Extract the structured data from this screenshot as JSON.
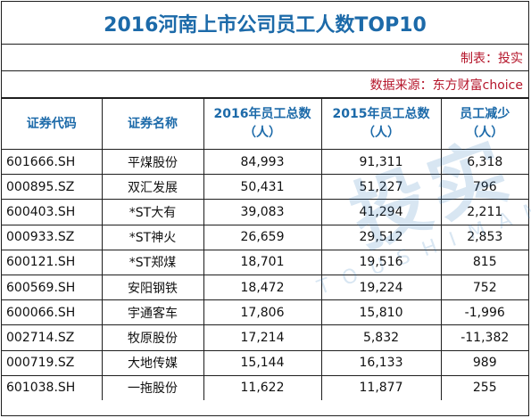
{
  "title": "2016河南上市公司员工人数TOP10",
  "credit": {
    "maker": "制表：投实",
    "source": "数据来源：东方财富choice"
  },
  "headers": {
    "code": "证券代码",
    "name": "证券名称",
    "emp2016": [
      "2016年员工总数",
      "（人）"
    ],
    "emp2015": [
      "2015年员工总数",
      "（人）"
    ],
    "decrease": [
      "员工减少",
      "（人）"
    ]
  },
  "rows": [
    {
      "code": "601666.SH",
      "name": "平煤股份",
      "emp2016": "84,993",
      "emp2015": "91,311",
      "decrease": "6,318"
    },
    {
      "code": "000895.SZ",
      "name": "双汇发展",
      "emp2016": "50,431",
      "emp2015": "51,227",
      "decrease": "796"
    },
    {
      "code": "600403.SH",
      "name": "*ST大有",
      "emp2016": "39,083",
      "emp2015": "41,294",
      "decrease": "2,211"
    },
    {
      "code": "000933.SZ",
      "name": "*ST神火",
      "emp2016": "26,659",
      "emp2015": "29,512",
      "decrease": "2,853"
    },
    {
      "code": "600121.SH",
      "name": "*ST郑煤",
      "emp2016": "18,701",
      "emp2015": "19,516",
      "decrease": "815"
    },
    {
      "code": "600569.SH",
      "name": "安阳钢铁",
      "emp2016": "18,472",
      "emp2015": "19,224",
      "decrease": "752"
    },
    {
      "code": "600066.SH",
      "name": "宇通客车",
      "emp2016": "17,806",
      "emp2015": "15,810",
      "decrease": "-1,996"
    },
    {
      "code": "002714.SZ",
      "name": "牧原股份",
      "emp2016": "17,214",
      "emp2015": "5,832",
      "decrease": "-11,382"
    },
    {
      "code": "000719.SZ",
      "name": "大地传媒",
      "emp2016": "15,144",
      "emp2015": "16,133",
      "decrease": "989"
    },
    {
      "code": "601038.SH",
      "name": "一拖股份",
      "emp2016": "11,622",
      "emp2015": "11,877",
      "decrease": "255"
    }
  ],
  "watermark": {
    "main": "投实",
    "sub": "TOUSHIMAMA"
  },
  "colors": {
    "title": "#1c6aa9",
    "header": "#1c6aa9",
    "credit": "#b5162b",
    "border": "#1e1e1e"
  }
}
